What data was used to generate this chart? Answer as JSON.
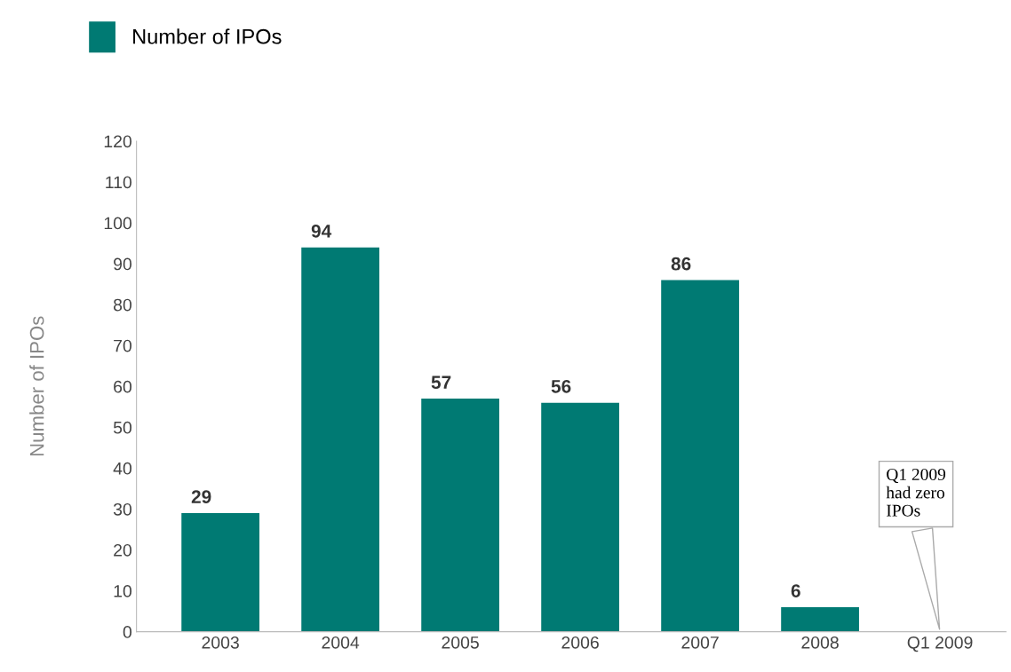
{
  "chart_data": {
    "type": "bar",
    "ylabel": "Number of IPOs",
    "categories": [
      "2003",
      "2004",
      "2005",
      "2006",
      "2007",
      "2008",
      "Q1 2009"
    ],
    "series": [
      {
        "name": "Number of IPOs",
        "color": "#007a73",
        "values": [
          29,
          94,
          57,
          56,
          86,
          6,
          0
        ],
        "value_labels": [
          "29",
          "94",
          "57",
          "56",
          "86",
          "6",
          null
        ]
      }
    ],
    "ylim": [
      0,
      120
    ],
    "yticks": [
      0,
      10,
      20,
      30,
      40,
      50,
      60,
      70,
      80,
      90,
      100,
      110,
      120
    ],
    "annotations": [
      {
        "text": "Q1 2009\nhad zero\nIPOs",
        "x": "Q1 2009",
        "y": 0
      }
    ],
    "legend": "top left",
    "grid": false
  }
}
